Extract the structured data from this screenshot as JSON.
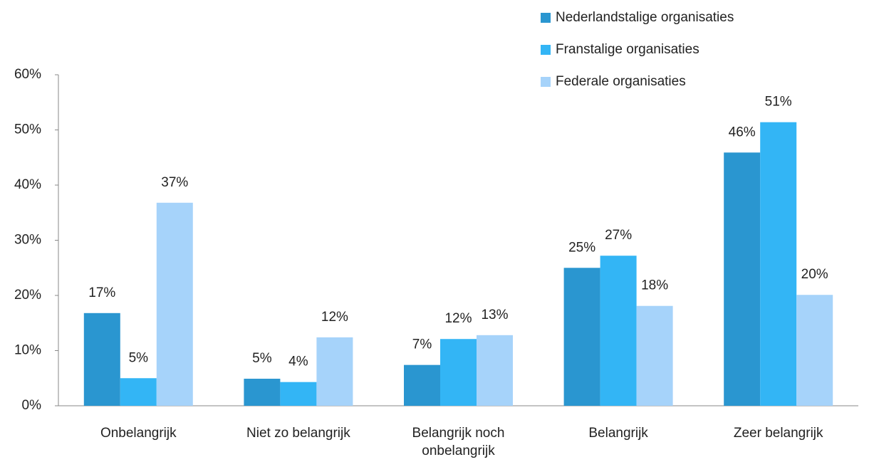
{
  "chart_data": {
    "type": "bar",
    "categories": [
      "Onbelangrijk",
      "Niet zo belangrijk",
      "Belangrijk noch onbelangrijk",
      "Belangrijk",
      "Zeer belangrijk"
    ],
    "series": [
      {
        "name": "Nederlandstalige organisaties",
        "color": "#2a96d0",
        "values": [
          16.8,
          4.9,
          7.4,
          25.0,
          45.9
        ],
        "value_labels": [
          "17%",
          "5%",
          "7%",
          "25%",
          "46%"
        ]
      },
      {
        "name": "Franstalige organisaties",
        "color": "#33b5f5",
        "values": [
          5.0,
          4.3,
          12.1,
          27.2,
          51.4
        ],
        "value_labels": [
          "5%",
          "4%",
          "12%",
          "27%",
          "51%"
        ]
      },
      {
        "name": "Federale organisaties",
        "color": "#a6d3fa",
        "values": [
          36.8,
          12.4,
          12.8,
          18.1,
          20.1
        ],
        "value_labels": [
          "37%",
          "12%",
          "13%",
          "18%",
          "20%"
        ]
      }
    ],
    "ylim": [
      0,
      60
    ],
    "yticks": [
      {
        "value": 0,
        "label": "0%"
      },
      {
        "value": 10,
        "label": "10%"
      },
      {
        "value": 20,
        "label": "20%"
      },
      {
        "value": 30,
        "label": "30%"
      },
      {
        "value": 40,
        "label": "40%"
      },
      {
        "value": 50,
        "label": "50%"
      },
      {
        "value": 60,
        "label": "60%"
      }
    ],
    "grid": false,
    "legend": "top-right"
  }
}
